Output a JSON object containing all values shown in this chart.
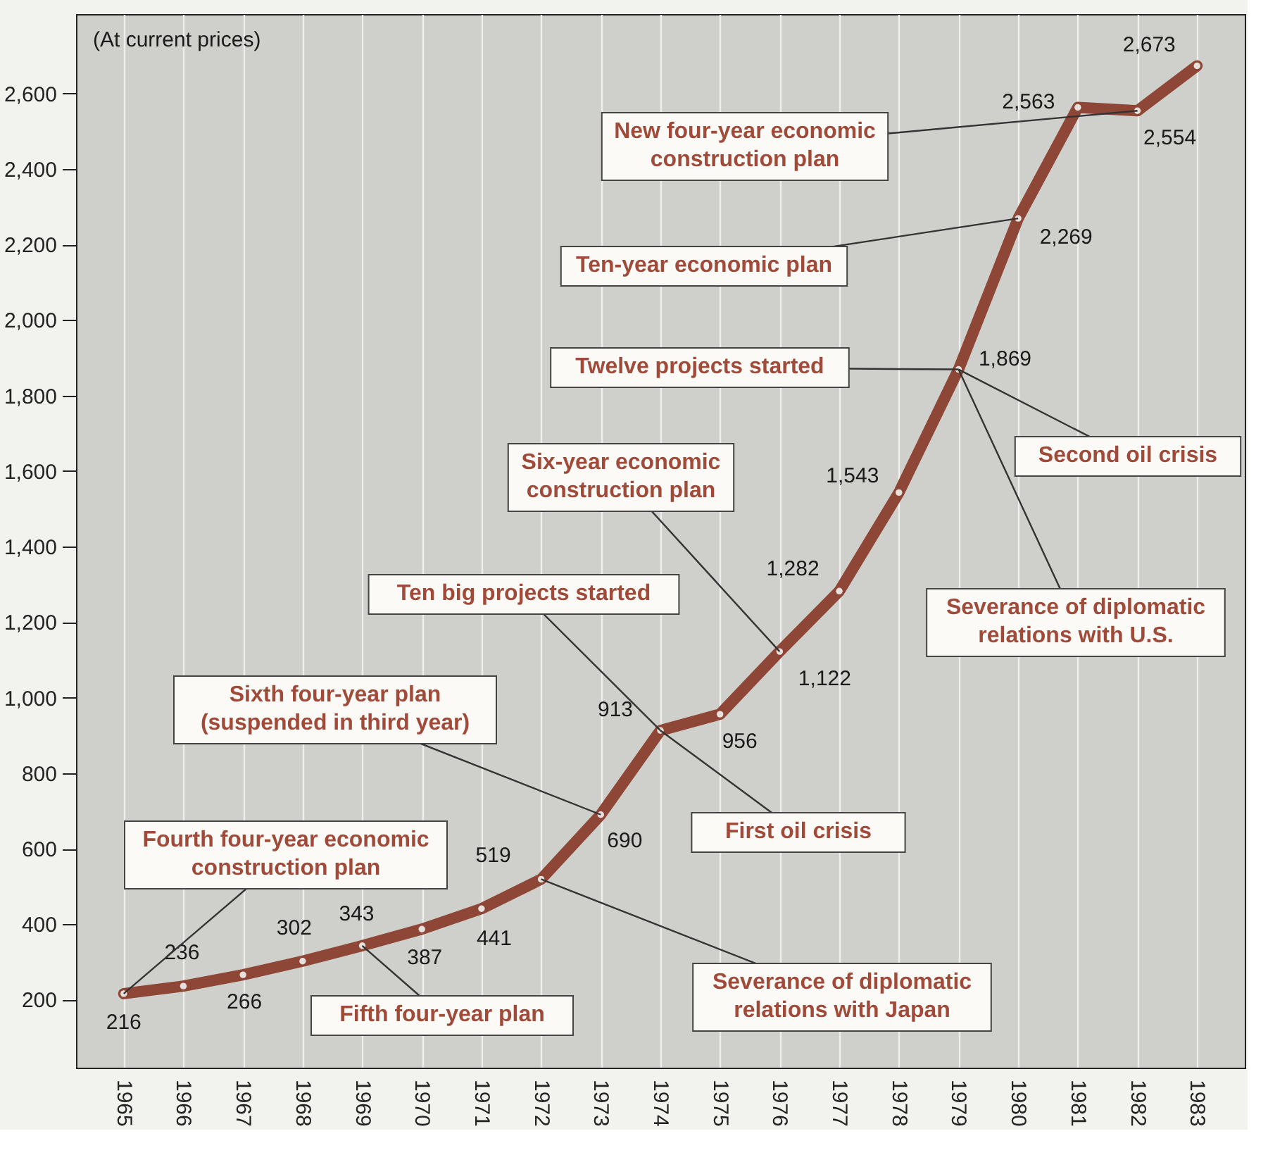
{
  "chart_data": {
    "type": "line",
    "categories": [
      "1965",
      "1966",
      "1967",
      "1968",
      "1969",
      "1970",
      "1971",
      "1972",
      "1973",
      "1974",
      "1975",
      "1976",
      "1977",
      "1978",
      "1979",
      "1980",
      "1981",
      "1982",
      "1983"
    ],
    "series": [
      {
        "color": "#8e4636",
        "values": [
          216,
          236,
          266,
          302,
          343,
          387,
          441,
          519,
          690,
          913,
          956,
          1122,
          1282,
          1543,
          1869,
          2269,
          2563,
          2554,
          2673
        ],
        "value_labels": [
          "216",
          "236",
          "266",
          "302",
          "343",
          "387",
          "441",
          "519",
          "690",
          "913",
          "956",
          "1,122",
          "1,282",
          "1,543",
          "1,869",
          "2,269",
          "2,563",
          "2,554",
          "2,673"
        ]
      }
    ],
    "marker": "circle",
    "ylim": [
      20,
      2810
    ],
    "yticks": [
      {
        "value": 200,
        "label": "200"
      },
      {
        "value": 400,
        "label": "400"
      },
      {
        "value": 600,
        "label": "600"
      },
      {
        "value": 800,
        "label": "800"
      },
      {
        "value": 1000,
        "label": "1,000"
      },
      {
        "value": 1200,
        "label": "1,200"
      },
      {
        "value": 1400,
        "label": "1,400"
      },
      {
        "value": 1600,
        "label": "1,600"
      },
      {
        "value": 1800,
        "label": "1,800"
      },
      {
        "value": 2000,
        "label": "2,000"
      },
      {
        "value": 2200,
        "label": "2,200"
      },
      {
        "value": 2400,
        "label": "2,400"
      },
      {
        "value": 2600,
        "label": "2,600"
      }
    ],
    "grid": "x",
    "annotations": [
      "(At current prices)",
      {
        "text": "Fourth four-year economic\nconstruction plan",
        "x": "1965",
        "y": 216
      },
      {
        "text": "Fifth four-year plan",
        "x": "1969",
        "y": 343
      },
      {
        "text": "Sixth four-year plan\n(suspended in third year)",
        "x": "1973",
        "y": 690
      },
      {
        "text": "Severance of diplomatic\nrelations with Japan",
        "x": "1972",
        "y": 519
      },
      {
        "text": "Ten big projects started",
        "x": "1974",
        "y": 913
      },
      {
        "text": "First oil crisis",
        "x": "1974",
        "y": 913
      },
      {
        "text": "Six-year economic\nconstruction plan",
        "x": "1976",
        "y": 1122
      },
      {
        "text": "Severance of diplomatic\nrelations with U.S.",
        "x": "1979",
        "y": 1869
      },
      {
        "text": "Twelve projects started",
        "x": "1979",
        "y": 1869
      },
      {
        "text": "Second oil crisis",
        "x": "1979",
        "y": 1869
      },
      {
        "text": "Ten-year economic plan",
        "x": "1980",
        "y": 2269
      },
      {
        "text": "New four-year economic\nconstruction plan",
        "x": "1982",
        "y": 2554
      }
    ]
  }
}
